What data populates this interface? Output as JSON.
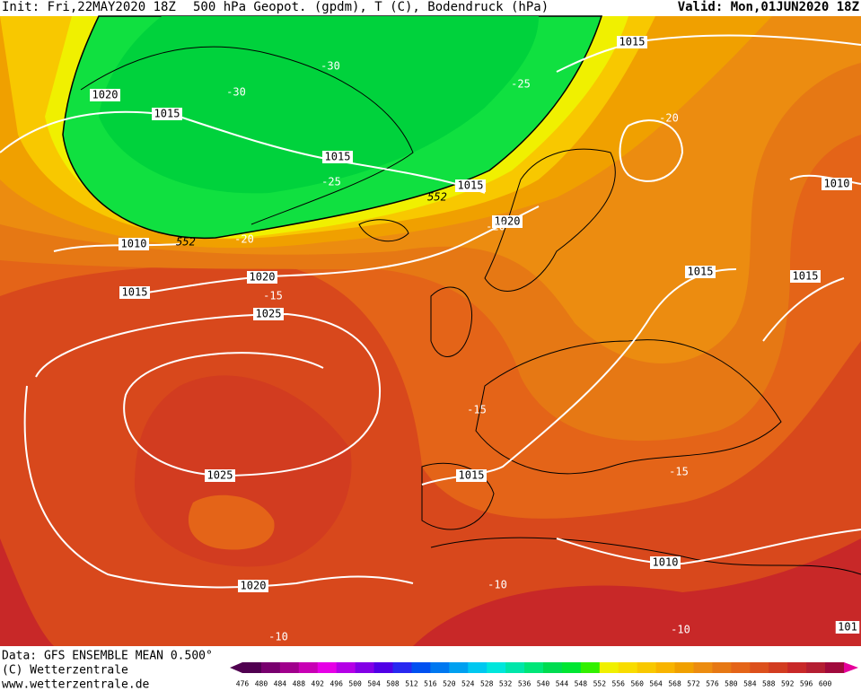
{
  "header": {
    "init": "Init: Fri,22MAY2020 18Z",
    "title": "500 hPa Geopot. (gpdm), T (C), Bodendruck (hPa)",
    "valid": "Valid: Mon,01JUN2020 18Z"
  },
  "map_labels": [
    "1020",
    "1015",
    "-30",
    "-30",
    "-25",
    "1015",
    "-20",
    "1015",
    "-25",
    "1015",
    "552",
    "1020",
    "-20",
    "1010",
    "1010",
    "552",
    "-20",
    "1015",
    "1020",
    "-15",
    "1025",
    "1015",
    "1015",
    "-15",
    "1015",
    "-15",
    "1025",
    "1010",
    "1020",
    "-10",
    "-10",
    "101",
    "-10"
  ],
  "footer": [
    "Data: GFS ENSEMBLE MEAN 0.500°",
    "(C) Wetterzentrale",
    "www.wetterzentrale.de"
  ],
  "colorbar": {
    "values": [
      476,
      480,
      484,
      488,
      492,
      496,
      500,
      504,
      508,
      512,
      516,
      520,
      524,
      528,
      532,
      536,
      540,
      544,
      548,
      552,
      556,
      560,
      564,
      568,
      572,
      576,
      580,
      584,
      588,
      592,
      596,
      600
    ],
    "colors": [
      "#500050",
      "#78006e",
      "#a0008c",
      "#c800b4",
      "#e600e6",
      "#b400e6",
      "#8200e6",
      "#5000e6",
      "#2828f0",
      "#0050f0",
      "#0078f0",
      "#00a0f0",
      "#00c8f0",
      "#00e6dc",
      "#00e6aa",
      "#00e678",
      "#00dc50",
      "#00e632",
      "#32f000",
      "#f0f000",
      "#f8dc00",
      "#f8c800",
      "#f8b400",
      "#f0a000",
      "#ec8c10",
      "#e67814",
      "#e46418",
      "#dc501c",
      "#d23c20",
      "#c82828",
      "#b41e32",
      "#a00a3c"
    ]
  }
}
